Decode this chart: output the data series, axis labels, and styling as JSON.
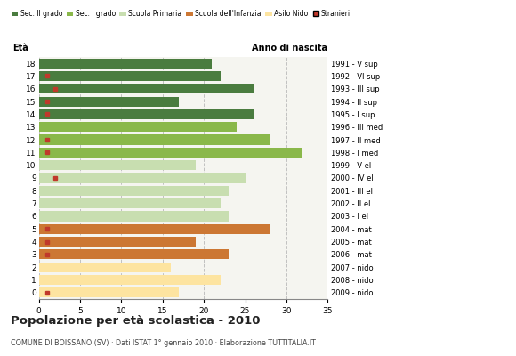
{
  "ages": [
    18,
    17,
    16,
    15,
    14,
    13,
    12,
    11,
    10,
    9,
    8,
    7,
    6,
    5,
    4,
    3,
    2,
    1,
    0
  ],
  "years": [
    "1991 - V sup",
    "1992 - VI sup",
    "1993 - III sup",
    "1994 - II sup",
    "1995 - I sup",
    "1996 - III med",
    "1997 - II med",
    "1998 - I med",
    "1999 - V el",
    "2000 - IV el",
    "2001 - III el",
    "2002 - II el",
    "2003 - I el",
    "2004 - mat",
    "2005 - mat",
    "2006 - mat",
    "2007 - nido",
    "2008 - nido",
    "2009 - nido"
  ],
  "values": [
    21,
    22,
    26,
    17,
    26,
    24,
    28,
    32,
    19,
    25,
    23,
    22,
    23,
    28,
    19,
    23,
    16,
    22,
    17
  ],
  "stranieri": [
    0,
    1,
    2,
    1,
    1,
    0,
    1,
    1,
    0,
    2,
    0,
    0,
    0,
    1,
    1,
    1,
    0,
    0,
    1
  ],
  "bar_colors": [
    "#4a7c3f",
    "#4a7c3f",
    "#4a7c3f",
    "#4a7c3f",
    "#4a7c3f",
    "#8ab84a",
    "#8ab84a",
    "#8ab84a",
    "#c8deb0",
    "#c8deb0",
    "#c8deb0",
    "#c8deb0",
    "#c8deb0",
    "#cc7733",
    "#cc7733",
    "#cc7733",
    "#fde4a0",
    "#fde4a0",
    "#fde4a0"
  ],
  "legend_labels": [
    "Sec. II grado",
    "Sec. I grado",
    "Scuola Primaria",
    "Scuola dell'Infanzia",
    "Asilo Nido",
    "Stranieri"
  ],
  "legend_colors": [
    "#4a7c3f",
    "#8ab84a",
    "#c8deb0",
    "#cc7733",
    "#fde4a0",
    "#c0392b"
  ],
  "stranieri_color": "#c0392b",
  "xlabel_eta": "Età",
  "ylabel_anno": "Anno di nascita",
  "title": "Popolazione per età scolastica - 2010",
  "subtitle": "COMUNE DI BOISSANO (SV) · Dati ISTAT 1° gennaio 2010 · Elaborazione TUTTITALIA.IT",
  "xlim": [
    0,
    35
  ],
  "background_color": "#ffffff",
  "plot_bg_color": "#f5f5f0",
  "grid_color": "#bbbbbb"
}
